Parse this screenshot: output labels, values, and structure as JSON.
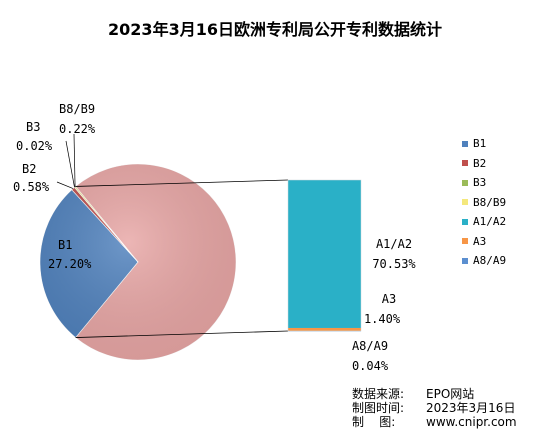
{
  "title": "2023年3月16日欧洲专利局公开专利数据统计",
  "chart_data": {
    "type": "pie",
    "subtype": "pie-of-bar",
    "pie_slices": [
      {
        "name": "B1",
        "label": "B1",
        "value_label": "27.20%",
        "value": 27.2,
        "color": "#4f81bd"
      },
      {
        "name": "B2",
        "label": "B2",
        "value_label": "0.58%",
        "value": 0.58,
        "color": "#c0504d"
      },
      {
        "name": "B3",
        "label": "B3",
        "value_label": "0.02%",
        "value": 0.02,
        "color": "#9bbb59"
      },
      {
        "name": "B8/B9",
        "label": "B8/B9",
        "value_label": "0.22%",
        "value": 0.22,
        "color": "#f4e87c"
      },
      {
        "name": "A-group",
        "label": "",
        "value_label": "",
        "value": 71.97,
        "color": "#e8a6a5"
      }
    ],
    "bar_segments": [
      {
        "name": "A1/A2",
        "label": "A1/A2",
        "value_label": "70.53%",
        "value": 70.53,
        "color": "#2ab0c7"
      },
      {
        "name": "A3",
        "label": "A3",
        "value_label": "1.40%",
        "value": 1.4,
        "color": "#f79646"
      },
      {
        "name": "A8/A9",
        "label": "A8/A9",
        "value_label": "0.04%",
        "value": 0.04,
        "color": "#5b8fd0"
      }
    ],
    "legend": {
      "position": "right",
      "items": [
        {
          "label": "B1",
          "color": "#4f81bd"
        },
        {
          "label": "B2",
          "color": "#c0504d"
        },
        {
          "label": "B3",
          "color": "#9bbb59"
        },
        {
          "label": "B8/B9",
          "color": "#f4e87c"
        },
        {
          "label": "A1/A2",
          "color": "#2ab0c7"
        },
        {
          "label": "A3",
          "color": "#f79646"
        },
        {
          "label": "A8/A9",
          "color": "#5b8fd0"
        }
      ]
    }
  },
  "source": {
    "line1_label": "数据来源:",
    "line1_value": "EPO网站",
    "line2_label": "制图时间:",
    "line2_value": "2023年3月16日",
    "line3_label": "制    图:",
    "line3_value": "www.cnipr.com"
  }
}
